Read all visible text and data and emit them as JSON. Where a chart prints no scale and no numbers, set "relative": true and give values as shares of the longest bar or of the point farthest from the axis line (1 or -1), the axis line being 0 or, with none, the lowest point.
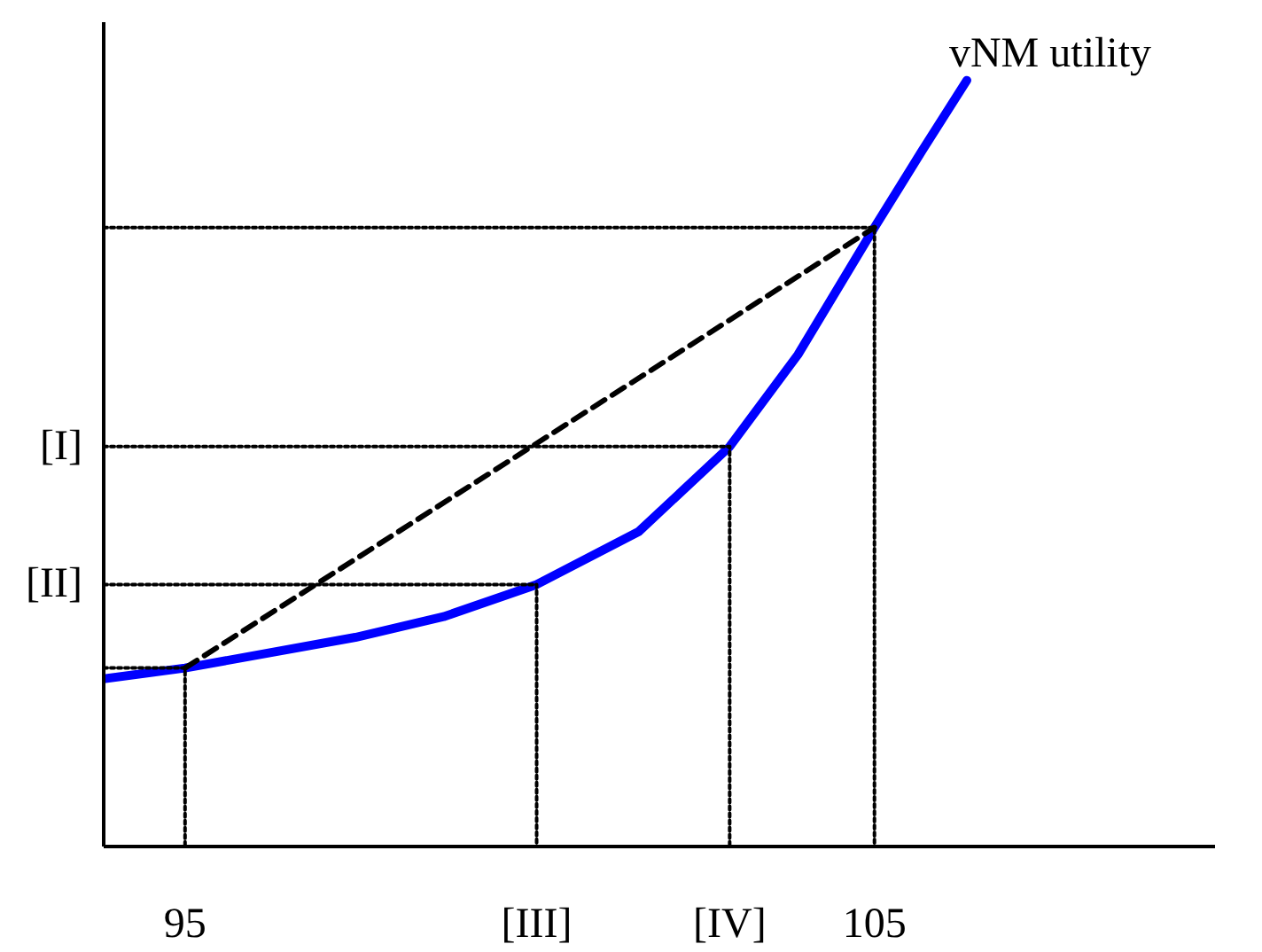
{
  "chart_data": {
    "type": "line",
    "relative": true,
    "xlim": [
      93.82,
      109.94
    ],
    "xticks": [
      95,
      {
        "value": 100.1,
        "label": "[III]"
      },
      {
        "value": 102.9,
        "label": "[IV]"
      },
      105
    ],
    "series": [
      {
        "name": "vNM utility",
        "color": "#0000ff",
        "line_style": "solid",
        "x": [
          93.82,
          95,
          97.47,
          98.75,
          100.1,
          101.58,
          102.9,
          103.89,
          105,
          105.69,
          106.34
        ],
        "values": [
          0.219,
          0.233,
          0.273,
          0.3,
          0.342,
          0.411,
          0.522,
          0.642,
          0.808,
          0.908,
          1.0
        ]
      },
      {
        "color": "#000000",
        "line_style": "dashed",
        "x": [
          95,
          105
        ],
        "values": [
          0.233,
          0.808
        ]
      },
      {
        "color": "#000000",
        "line_style": "dotted",
        "x": [
          93.82,
          95,
          95
        ],
        "values": [
          0.233,
          0.233,
          0
        ]
      },
      {
        "name": "[II]",
        "color": "#000000",
        "line_style": "dotted",
        "x": [
          93.82,
          100.1,
          100.1
        ],
        "values": [
          0.342,
          0.342,
          0
        ]
      },
      {
        "name": "[I]",
        "color": "#000000",
        "line_style": "dotted",
        "x": [
          93.82,
          102.9,
          102.9
        ],
        "values": [
          0.522,
          0.522,
          0
        ]
      },
      {
        "color": "#000000",
        "line_style": "dotted",
        "x": [
          93.82,
          105,
          105
        ],
        "values": [
          0.808,
          0.808,
          0
        ]
      }
    ],
    "grid": false,
    "legend": false
  }
}
